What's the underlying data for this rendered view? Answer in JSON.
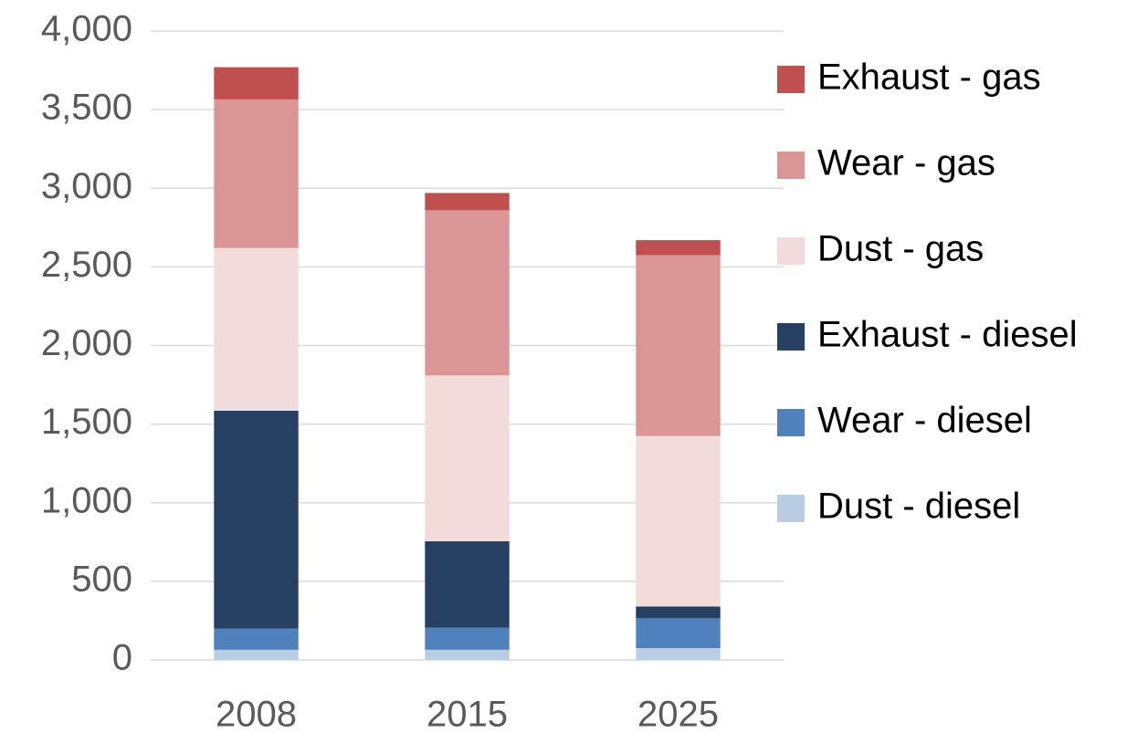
{
  "chart_data": {
    "type": "stacked_bar",
    "categories": [
      "2008",
      "2015",
      "2025"
    ],
    "series": [
      {
        "name": "Dust - diesel",
        "color": "#b9cde5",
        "values": [
          65,
          65,
          75
        ]
      },
      {
        "name": "Wear - diesel",
        "color": "#4f81bd",
        "values": [
          135,
          140,
          190
        ]
      },
      {
        "name": "Exhaust - diesel",
        "color": "#254061",
        "values": [
          1385,
          550,
          75
        ]
      },
      {
        "name": "Dust - gas",
        "color": "#f2dcdb",
        "values": [
          1035,
          1055,
          1085
        ]
      },
      {
        "name": "Wear - gas",
        "color": "#d99694",
        "values": [
          945,
          1050,
          1150
        ]
      },
      {
        "name": "Exhaust - gas",
        "color": "#c0504d",
        "values": [
          205,
          110,
          95
        ]
      }
    ],
    "ylim": [
      0,
      4000
    ],
    "yticks": [
      0,
      500,
      {
        "value": 1000,
        "label": "1,000"
      },
      {
        "value": 1500,
        "label": "1,500"
      },
      {
        "value": 2000,
        "label": "2,000"
      },
      {
        "value": 2500,
        "label": "2,500"
      },
      {
        "value": 3000,
        "label": "3,000"
      },
      {
        "value": 3500,
        "label": "3,500"
      },
      {
        "value": 4000,
        "label": "4,000"
      }
    ],
    "grid": true,
    "legend": "right"
  }
}
